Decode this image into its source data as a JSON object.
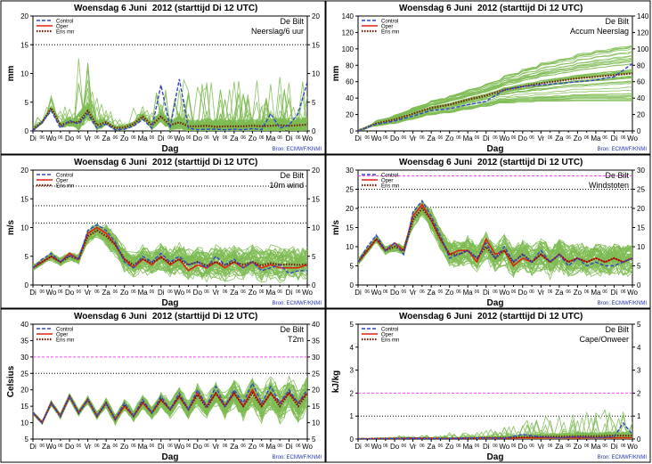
{
  "meta": {
    "title_prefix": "Woensdag  6 Juni",
    "title_suffix": "2012  (starttijd  Di 12 UTC)",
    "station": "De Bilt",
    "source": "Bron:  ECMWF/KNMI",
    "xlabel": "Dag",
    "legend": [
      "Control",
      "Oper",
      "Ens mn"
    ],
    "day_labels": [
      "Di",
      "Wo",
      "Do",
      "Vr",
      "Za",
      "Zo",
      "Ma",
      "Di",
      "Wo",
      "Do",
      "Vr",
      "Za",
      "Zo",
      "Ma",
      "Di",
      "Wo"
    ],
    "sub_label": "06",
    "colors": {
      "members": "#7dbb52",
      "control": "#3344cc",
      "oper": "#dd2211",
      "ensmean": "#7a1a0a",
      "hline_pink": "#ff44ff",
      "hline_dot": "#000000"
    }
  },
  "chart_data": [
    {
      "id": "neerslag",
      "type": "line",
      "var_label": "Neerslag/6 uur",
      "ylabel": "mm",
      "ylim": [
        0,
        20
      ],
      "yticks": [
        0,
        5,
        10,
        15,
        20
      ],
      "hlines": [
        {
          "y": 15,
          "style": "dot"
        }
      ],
      "show_oper": false,
      "xlim": [
        0,
        15
      ],
      "spread": [
        0.6,
        0.8,
        1.5,
        3.5,
        1.7,
        0.8,
        0.8,
        1.0,
        1.8,
        2.0,
        2.5,
        2.5,
        2.8,
        2.6,
        2.4,
        2.6,
        2.8,
        2.8,
        2.8,
        2.5
      ],
      "control": {
        "x": [
          0,
          0.5,
          1,
          1.5,
          2,
          2.5,
          3,
          3.5,
          4,
          4.5,
          5,
          5.5,
          6,
          6.5,
          7,
          7.5,
          8,
          8.5,
          9,
          9.5,
          10,
          10.5,
          11,
          11.5,
          12,
          12.5,
          13,
          13.5,
          14,
          14.5,
          15
        ],
        "y": [
          0,
          1.5,
          3.5,
          0.5,
          1.8,
          1.2,
          3.0,
          0.5,
          1.2,
          0.2,
          0.3,
          0.8,
          2.0,
          0.5,
          8.0,
          0.5,
          9.0,
          0.5,
          0.2,
          0.3,
          0.3,
          0.2,
          0.3,
          0.2,
          0.4,
          0.2,
          3.0,
          0.5,
          1.0,
          3.0,
          8.5
        ]
      },
      "ensmean": {
        "x": [
          0,
          0.5,
          1,
          1.5,
          2,
          2.5,
          3,
          3.5,
          4,
          4.5,
          5,
          5.5,
          6,
          6.5,
          7,
          7.5,
          8,
          8.5,
          9,
          9.5,
          10,
          10.5,
          11,
          11.5,
          12,
          12.5,
          13,
          13.5,
          14,
          14.5,
          15
        ],
        "y": [
          0.3,
          1.5,
          4.0,
          1.0,
          1.5,
          1.5,
          3.5,
          1.0,
          1.5,
          0.5,
          0.6,
          1.2,
          2.5,
          1.0,
          2.5,
          1.0,
          1.5,
          0.8,
          0.8,
          0.9,
          0.7,
          0.8,
          0.8,
          0.8,
          0.9,
          0.8,
          0.9,
          1.0,
          0.9,
          1.0,
          1.1
        ]
      }
    },
    {
      "id": "accum",
      "type": "line",
      "var_label": "Accum Neerslag",
      "ylabel": "mm",
      "ylim": [
        0,
        140
      ],
      "yticks": [
        0,
        20,
        40,
        60,
        80,
        100,
        120,
        140
      ],
      "hlines": [],
      "show_oper": false,
      "xlim": [
        0,
        15
      ],
      "spread": [
        1,
        4,
        6,
        8,
        10,
        12,
        14,
        16,
        20,
        24,
        28,
        30,
        34,
        36,
        38,
        40
      ],
      "control": {
        "x": [
          0,
          1,
          2,
          3,
          4,
          5,
          6,
          7,
          8,
          9,
          10,
          11,
          12,
          13,
          14,
          15
        ],
        "y": [
          0,
          8,
          12,
          18,
          25,
          27,
          32,
          36,
          50,
          54,
          56,
          58,
          60,
          62,
          66,
          82
        ]
      },
      "ensmean": {
        "x": [
          0,
          1,
          2,
          3,
          4,
          5,
          6,
          7,
          8,
          9,
          10,
          11,
          12,
          13,
          14,
          15
        ],
        "y": [
          0,
          9,
          14,
          21,
          28,
          32,
          38,
          43,
          50,
          54,
          58,
          61,
          64,
          66,
          68,
          70
        ]
      }
    },
    {
      "id": "wind",
      "type": "line",
      "var_label": "10m wind",
      "ylabel": "m/s",
      "ylim": [
        0,
        20
      ],
      "yticks": [
        0,
        5,
        10,
        15,
        20
      ],
      "hlines": [
        {
          "y": 10.8,
          "style": "dot"
        },
        {
          "y": 13.8,
          "style": "dot"
        },
        {
          "y": 17.2,
          "style": "dot"
        }
      ],
      "show_oper": true,
      "xlim": [
        0,
        15
      ],
      "spread": [
        0.5,
        0.7,
        0.8,
        1.2,
        1.8,
        2.0,
        2.2,
        2.4,
        2.5,
        2.5,
        2.6,
        2.6,
        2.7,
        2.7,
        2.7,
        2.7
      ],
      "control": {
        "x": [
          0,
          0.5,
          1,
          1.5,
          2,
          2.5,
          3,
          3.5,
          4,
          4.5,
          5,
          5.5,
          6,
          6.5,
          7,
          7.5,
          8,
          8.5,
          9,
          9.5,
          10,
          10.5,
          11,
          11.5,
          12,
          12.5,
          13,
          13.5,
          14,
          14.5,
          15
        ],
        "y": [
          3,
          4.5,
          5.5,
          4.0,
          5.2,
          4.5,
          9.5,
          10.5,
          9.5,
          7.5,
          4.0,
          3.0,
          5.0,
          4.0,
          5.5,
          4.0,
          5.0,
          3.5,
          4.0,
          3.0,
          5.0,
          3.5,
          4.5,
          3.0,
          4.0,
          2.5,
          3.0,
          3.5,
          2.0,
          2.5,
          2.5
        ]
      },
      "oper": {
        "x": [
          0,
          0.5,
          1,
          1.5,
          2,
          2.5,
          3,
          3.5,
          4,
          4.5,
          5,
          5.5,
          6,
          6.5,
          7,
          7.5,
          8,
          8.5,
          9,
          9.5,
          10,
          10.5,
          11,
          11.5,
          12,
          12.5,
          13,
          13.5,
          14,
          14.5,
          15
        ],
        "y": [
          3,
          4.0,
          5.0,
          4.0,
          5.5,
          4.5,
          9.0,
          10.0,
          9.0,
          7.0,
          4.5,
          3.0,
          4.5,
          3.5,
          5.0,
          3.5,
          4.5,
          2.5,
          3.5,
          3.0,
          4.0,
          3.0,
          4.0,
          3.0,
          4.0,
          3.0,
          3.5,
          3.0,
          3.0,
          3.0,
          3.5
        ]
      },
      "ensmean": {
        "x": [
          0,
          0.5,
          1,
          1.5,
          2,
          2.5,
          3,
          3.5,
          4,
          4.5,
          5,
          5.5,
          6,
          6.5,
          7,
          7.5,
          8,
          8.5,
          9,
          9.5,
          10,
          10.5,
          11,
          11.5,
          12,
          12.5,
          13,
          13.5,
          14,
          14.5,
          15
        ],
        "y": [
          3,
          4.0,
          5.0,
          4.0,
          5.0,
          4.5,
          8.5,
          9.5,
          8.5,
          7.0,
          4.5,
          3.5,
          4.5,
          3.8,
          4.8,
          3.8,
          4.5,
          3.5,
          4.0,
          3.4,
          4.0,
          3.5,
          4.0,
          3.5,
          4.0,
          3.4,
          3.8,
          3.5,
          3.6,
          3.5,
          3.6
        ]
      }
    },
    {
      "id": "windstoten",
      "type": "line",
      "var_label": "Windstoten",
      "ylabel": "m/s",
      "ylim": [
        0,
        30
      ],
      "yticks": [
        0,
        5,
        10,
        15,
        20,
        25,
        30
      ],
      "hlines": [
        {
          "y": 28.5,
          "style": "pink"
        },
        {
          "y": 20.3,
          "style": "dot"
        },
        {
          "y": 25,
          "style": "dot"
        }
      ],
      "show_oper": true,
      "xlim": [
        0,
        15
      ],
      "spread": [
        0.8,
        1.0,
        1.2,
        2.0,
        2.8,
        3.2,
        3.4,
        3.6,
        3.8,
        3.8,
        4.0,
        4.0,
        4.0,
        4.0,
        4.0,
        4.0
      ],
      "control": {
        "x": [
          0,
          0.5,
          1,
          1.5,
          2,
          2.5,
          3,
          3.5,
          4,
          4.5,
          5,
          5.5,
          6,
          6.5,
          7,
          7.5,
          8,
          8.5,
          9,
          9.5,
          10,
          10.5,
          11,
          11.5,
          12,
          12.5,
          13,
          13.5,
          14,
          14.5,
          15
        ],
        "y": [
          6,
          10,
          13,
          9,
          11,
          8,
          19,
          22,
          18,
          13,
          7,
          8,
          9,
          7,
          11,
          7,
          10,
          6,
          8,
          6,
          9,
          6,
          8,
          5,
          7,
          5,
          6,
          5,
          5,
          6,
          7
        ]
      },
      "oper": {
        "x": [
          0,
          0.5,
          1,
          1.5,
          2,
          2.5,
          3,
          3.5,
          4,
          4.5,
          5,
          5.5,
          6,
          6.5,
          7,
          7.5,
          8,
          8.5,
          9,
          9.5,
          10,
          10.5,
          11,
          11.5,
          12,
          12.5,
          13,
          13.5,
          14,
          14.5,
          15
        ],
        "y": [
          6,
          9,
          12,
          9,
          11,
          9,
          18,
          21,
          17,
          12,
          8,
          9,
          9,
          6,
          12,
          8,
          9,
          5,
          7,
          6,
          8,
          6,
          8,
          6,
          7,
          6,
          7,
          6,
          7,
          6,
          7
        ]
      },
      "ensmean": {
        "x": [
          0,
          0.5,
          1,
          1.5,
          2,
          2.5,
          3,
          3.5,
          4,
          4.5,
          5,
          5.5,
          6,
          6.5,
          7,
          7.5,
          8,
          8.5,
          9,
          9.5,
          10,
          10.5,
          11,
          11.5,
          12,
          12.5,
          13,
          13.5,
          14,
          14.5,
          15
        ],
        "y": [
          6,
          9,
          12,
          9,
          10,
          9,
          17,
          20,
          17,
          12,
          8,
          8,
          9,
          7,
          10,
          7,
          9,
          6,
          8,
          6,
          8,
          6,
          8,
          6,
          7,
          6,
          7,
          6,
          7,
          6,
          7
        ]
      }
    },
    {
      "id": "t2m",
      "type": "line",
      "var_label": "T2m",
      "ylabel": "Celsius",
      "ylim": [
        5,
        40
      ],
      "yticks": [
        5,
        10,
        15,
        20,
        25,
        30,
        35,
        40
      ],
      "hlines": [
        {
          "y": 30,
          "style": "pink"
        },
        {
          "y": 25,
          "style": "dot"
        }
      ],
      "show_oper": true,
      "xlim": [
        0,
        15
      ],
      "spread": [
        0.5,
        0.8,
        1.0,
        1.2,
        1.5,
        1.8,
        2.0,
        2.4,
        2.8,
        3.2,
        3.6,
        4.0,
        4.4,
        4.8,
        5.0,
        5.2
      ],
      "control": {
        "x": [
          0,
          0.5,
          1,
          1.5,
          2,
          2.5,
          3,
          3.5,
          4,
          4.5,
          5,
          5.5,
          6,
          6.5,
          7,
          7.5,
          8,
          8.5,
          9,
          9.5,
          10,
          10.5,
          11,
          11.5,
          12,
          12.5,
          13,
          13.5,
          14,
          14.5,
          15
        ],
        "y": [
          13,
          10,
          16,
          12,
          18,
          13,
          17,
          12,
          16,
          11,
          16,
          12,
          17,
          13,
          18,
          14,
          19,
          14,
          20,
          15,
          21,
          15,
          20,
          16,
          22,
          16,
          21,
          16,
          20,
          16,
          20
        ]
      },
      "oper": {
        "x": [
          0,
          0.5,
          1,
          1.5,
          2,
          2.5,
          3,
          3.5,
          4,
          4.5,
          5,
          5.5,
          6,
          6.5,
          7,
          7.5,
          8,
          8.5,
          9,
          9.5,
          10,
          10.5,
          11,
          11.5,
          12,
          12.5,
          13,
          13.5,
          14,
          14.5,
          15
        ],
        "y": [
          13,
          10,
          16,
          12,
          18,
          13,
          17,
          12,
          16,
          11,
          15,
          12,
          16,
          13,
          17,
          14,
          18,
          14,
          19,
          15,
          19,
          15,
          19,
          15,
          20,
          15,
          19,
          16,
          19,
          16,
          19
        ]
      },
      "ensmean": {
        "x": [
          0,
          0.5,
          1,
          1.5,
          2,
          2.5,
          3,
          3.5,
          4,
          4.5,
          5,
          5.5,
          6,
          6.5,
          7,
          7.5,
          8,
          8.5,
          9,
          9.5,
          10,
          10.5,
          11,
          11.5,
          12,
          12.5,
          13,
          13.5,
          14,
          14.5,
          15
        ],
        "y": [
          13,
          10,
          16,
          12,
          18,
          13,
          17,
          12,
          16,
          11,
          15.5,
          12,
          16.5,
          13,
          17,
          14,
          18,
          14,
          18.5,
          14.5,
          19,
          15,
          19,
          15,
          19,
          15,
          19,
          15,
          19,
          15,
          19
        ]
      }
    },
    {
      "id": "cape",
      "type": "line",
      "var_label": "Cape/Onweer",
      "ylabel": "kJ/kg",
      "ylim": [
        0,
        5
      ],
      "yticks": [
        0,
        1,
        2,
        3,
        4,
        5
      ],
      "hlines": [
        {
          "y": 2,
          "style": "pink"
        },
        {
          "y": 1,
          "style": "dot"
        }
      ],
      "show_oper": true,
      "xlim": [
        0,
        15
      ],
      "spread": [
        0.02,
        0.03,
        0.04,
        0.05,
        0.06,
        0.08,
        0.1,
        0.15,
        0.2,
        0.25,
        0.3,
        0.3,
        0.35,
        0.35,
        0.35,
        0.35
      ],
      "control": {
        "x": [
          0,
          1,
          2,
          3,
          4,
          5,
          6,
          7,
          8,
          9,
          10,
          11,
          12,
          13,
          14,
          14.5,
          15
        ],
        "y": [
          0,
          0,
          0.02,
          0.03,
          0.02,
          0.02,
          0.05,
          0.05,
          0.03,
          0.2,
          0.1,
          0.05,
          0.1,
          0.05,
          0.1,
          0.7,
          0.2
        ]
      },
      "oper": {
        "x": [
          0,
          1,
          2,
          3,
          4,
          5,
          6,
          7,
          8,
          9,
          10,
          11,
          12,
          13,
          14,
          15
        ],
        "y": [
          0,
          0.01,
          0.02,
          0.04,
          0.03,
          0.02,
          0.04,
          0.05,
          0.03,
          0.05,
          0.05,
          0.05,
          0.05,
          0.05,
          0.05,
          0.05
        ]
      },
      "ensmean": {
        "x": [
          0,
          1,
          2,
          3,
          4,
          5,
          6,
          7,
          8,
          9,
          10,
          11,
          12,
          13,
          14,
          15
        ],
        "y": [
          0,
          0.01,
          0.02,
          0.03,
          0.02,
          0.02,
          0.04,
          0.05,
          0.05,
          0.08,
          0.1,
          0.1,
          0.12,
          0.12,
          0.15,
          0.15
        ]
      }
    }
  ]
}
